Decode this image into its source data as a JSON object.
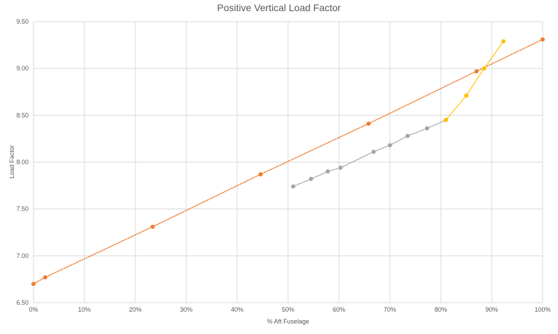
{
  "chart_data": {
    "type": "scatter",
    "title": "Positive Vertical Load Factor",
    "xlabel": "% Aft Fuselage",
    "ylabel": "Load Factor",
    "xlim": [
      0,
      100
    ],
    "ylim": [
      6.5,
      9.5
    ],
    "x_ticks": [
      "0%",
      "10%",
      "20%",
      "30%",
      "40%",
      "50%",
      "60%",
      "70%",
      "80%",
      "90%",
      "100%"
    ],
    "y_ticks": [
      "6.50",
      "7.00",
      "7.50",
      "8.00",
      "8.50",
      "9.00",
      "9.50"
    ],
    "grid": true,
    "series": [
      {
        "color": "#ed7d31",
        "x": [
          0,
          2.3,
          23.4,
          44.6,
          65.8,
          87.0,
          100
        ],
        "y": [
          6.7,
          6.77,
          7.31,
          7.87,
          8.41,
          8.97,
          9.31
        ]
      },
      {
        "color": "#a5a5a5",
        "x": [
          51.0,
          54.5,
          57.8,
          60.3,
          66.8,
          70.0,
          73.5,
          77.3,
          81.0
        ],
        "y": [
          7.74,
          7.82,
          7.9,
          7.94,
          8.11,
          8.18,
          8.28,
          8.36,
          8.45
        ]
      },
      {
        "color": "#ffc000",
        "x": [
          81.0,
          85.0,
          88.5,
          92.3
        ],
        "y": [
          8.45,
          8.71,
          9.0,
          9.29
        ]
      }
    ]
  }
}
